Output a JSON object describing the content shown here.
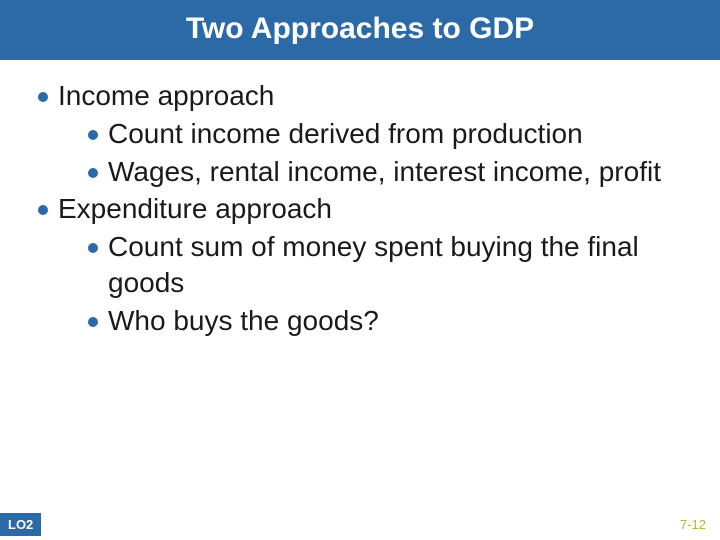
{
  "colors": {
    "title_bg": "#2b6aa7",
    "title_text": "#ffffff",
    "bullet_dot": "#2b6aa7",
    "body_text": "#1a1a1a",
    "lo_bg": "#2b6aa7",
    "lo_text": "#ffffff",
    "page_num": "#b8b235"
  },
  "title": "Two Approaches to GDP",
  "bullets": {
    "b1": "Income approach",
    "b1a": "Count income derived from production",
    "b1b": "Wages, rental income, interest income, profit",
    "b2": "Expenditure approach",
    "b2a": "Count sum of money spent buying the final goods",
    "b2b": "Who buys the goods?"
  },
  "footer": {
    "lo": "LO2",
    "page": "7-12"
  }
}
